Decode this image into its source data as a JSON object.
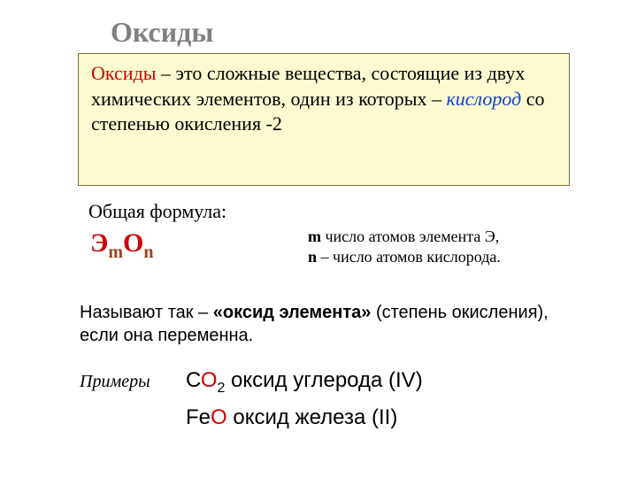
{
  "title": "Оксиды",
  "definition": {
    "term": "Оксиды",
    "text1": " – это сложные вещества, состоящие из двух химических элементов, один из которых – ",
    "oxygen": "кислород",
    "text2": " со степенью окисления -2"
  },
  "formula": {
    "label": "Общая формула:",
    "E": "Э",
    "m": "m",
    "O": "О",
    "n": "n"
  },
  "explanation": {
    "m_bold": "m",
    "m_text": " число атомов элемента Э,",
    "n_bold": "n",
    "n_text": " – число атомов кислорода."
  },
  "naming": {
    "prefix": "Называют  так – ",
    "bold": "«оксид элемента»",
    "suffix": " (степень окисления), если она переменна."
  },
  "examples": {
    "label": "Примеры",
    "ex1": {
      "C": "С",
      "O": "О",
      "sub": "2",
      "name": " оксид углерода (IV)"
    },
    "ex2": {
      "Fe": "Fe",
      "O": "О",
      "name": " оксид железа (II)"
    }
  },
  "colors": {
    "title_color": "#808080",
    "defbox_bg": "#fcfbcf",
    "defbox_border": "#7a6a3a",
    "red": "#d10000",
    "blue": "#1040d0",
    "brown": "#a04020"
  }
}
